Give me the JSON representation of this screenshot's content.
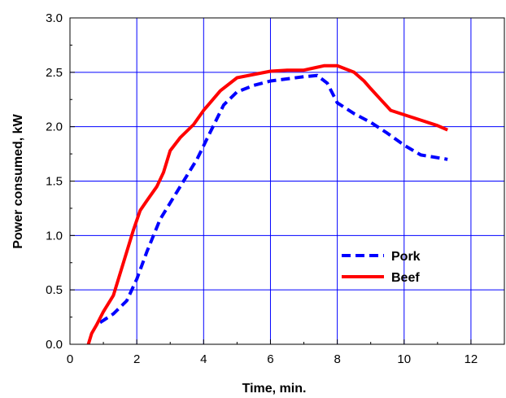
{
  "chart_data": {
    "type": "line",
    "xlabel": "Time, min.",
    "ylabel": "Power consumed, kW",
    "xlim": [
      0,
      13
    ],
    "ylim": [
      0,
      3.0
    ],
    "xticks": [
      0,
      2,
      4,
      6,
      8,
      10,
      12
    ],
    "yticks": [
      0,
      0.5,
      1.0,
      1.5,
      2.0,
      2.5,
      3.0
    ],
    "xtick_labels": [
      "0",
      "2",
      "4",
      "6",
      "8",
      "10",
      "12"
    ],
    "ytick_labels": [
      "0.0",
      "0.5",
      "1.0",
      "1.5",
      "2.0",
      "2.5",
      "3.0"
    ],
    "grid": true,
    "legend_position": "lower-right",
    "series": [
      {
        "name": "Pork",
        "color": "#0000ff",
        "style": "dashed",
        "x": [
          0.9,
          1.3,
          1.7,
          2.0,
          2.3,
          2.7,
          3.2,
          3.8,
          4.2,
          4.6,
          5.0,
          5.5,
          6.0,
          6.5,
          7.0,
          7.4,
          7.7,
          8.0,
          8.5,
          9.0,
          9.5,
          10.0,
          10.5,
          11.3
        ],
        "y": [
          0.2,
          0.28,
          0.4,
          0.6,
          0.85,
          1.15,
          1.4,
          1.7,
          1.95,
          2.2,
          2.32,
          2.38,
          2.42,
          2.44,
          2.46,
          2.47,
          2.4,
          2.22,
          2.12,
          2.04,
          1.94,
          1.83,
          1.74,
          1.7
        ]
      },
      {
        "name": "Beef",
        "color": "#ff0000",
        "style": "solid",
        "x": [
          0.55,
          0.65,
          0.8,
          1.0,
          1.3,
          1.6,
          1.9,
          2.1,
          2.3,
          2.6,
          2.8,
          3.0,
          3.3,
          3.7,
          4.0,
          4.5,
          5.0,
          5.5,
          6.0,
          6.5,
          7.0,
          7.3,
          7.6,
          8.0,
          8.5,
          8.8,
          9.0,
          9.3,
          9.6,
          10.0,
          10.5,
          11.0,
          11.3
        ],
        "y": [
          0.0,
          0.1,
          0.18,
          0.3,
          0.45,
          0.75,
          1.05,
          1.23,
          1.32,
          1.45,
          1.58,
          1.78,
          1.9,
          2.02,
          2.15,
          2.33,
          2.45,
          2.48,
          2.51,
          2.52,
          2.52,
          2.54,
          2.56,
          2.56,
          2.5,
          2.42,
          2.35,
          2.25,
          2.15,
          2.11,
          2.06,
          2.01,
          1.97
        ]
      }
    ]
  }
}
